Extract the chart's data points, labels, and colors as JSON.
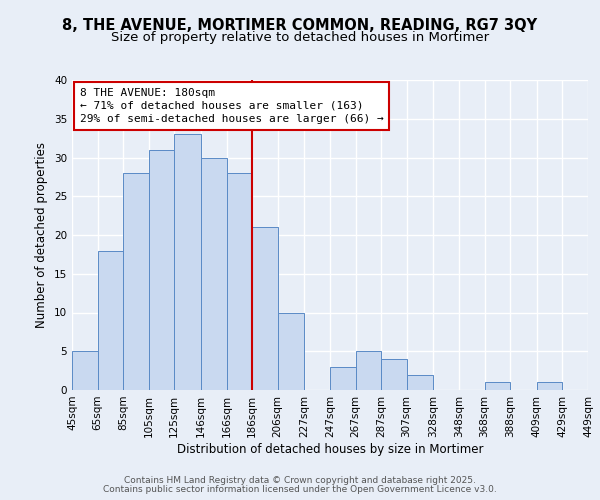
{
  "title": "8, THE AVENUE, MORTIMER COMMON, READING, RG7 3QY",
  "subtitle": "Size of property relative to detached houses in Mortimer",
  "xlabel": "Distribution of detached houses by size in Mortimer",
  "ylabel": "Number of detached properties",
  "bin_edges": [
    45,
    65,
    85,
    105,
    125,
    146,
    166,
    186,
    206,
    227,
    247,
    267,
    287,
    307,
    328,
    348,
    368,
    388,
    409,
    429,
    449
  ],
  "bin_counts": [
    5,
    18,
    28,
    31,
    33,
    30,
    28,
    21,
    10,
    0,
    3,
    5,
    4,
    2,
    0,
    0,
    1,
    0,
    1,
    0
  ],
  "bar_facecolor": "#c9d9f0",
  "bar_edgecolor": "#5a8ac6",
  "vline_x": 186,
  "vline_color": "#cc0000",
  "annotation_line1": "8 THE AVENUE: 180sqm",
  "annotation_line2": "← 71% of detached houses are smaller (163)",
  "annotation_line3": "29% of semi-detached houses are larger (66) →",
  "annotation_box_edgecolor": "#cc0000",
  "annotation_box_facecolor": "#ffffff",
  "yticks": [
    0,
    5,
    10,
    15,
    20,
    25,
    30,
    35,
    40
  ],
  "ylim": [
    0,
    40
  ],
  "tick_labels": [
    "45sqm",
    "65sqm",
    "85sqm",
    "105sqm",
    "125sqm",
    "146sqm",
    "166sqm",
    "186sqm",
    "206sqm",
    "227sqm",
    "247sqm",
    "267sqm",
    "287sqm",
    "307sqm",
    "328sqm",
    "348sqm",
    "368sqm",
    "388sqm",
    "409sqm",
    "429sqm",
    "449sqm"
  ],
  "footnote1": "Contains HM Land Registry data © Crown copyright and database right 2025.",
  "footnote2": "Contains public sector information licensed under the Open Government Licence v3.0.",
  "background_color": "#e8eef7",
  "grid_color": "#ffffff",
  "title_fontsize": 10.5,
  "subtitle_fontsize": 9.5,
  "axis_label_fontsize": 8.5,
  "tick_fontsize": 7.5,
  "annotation_fontsize": 8,
  "footnote_fontsize": 6.5
}
